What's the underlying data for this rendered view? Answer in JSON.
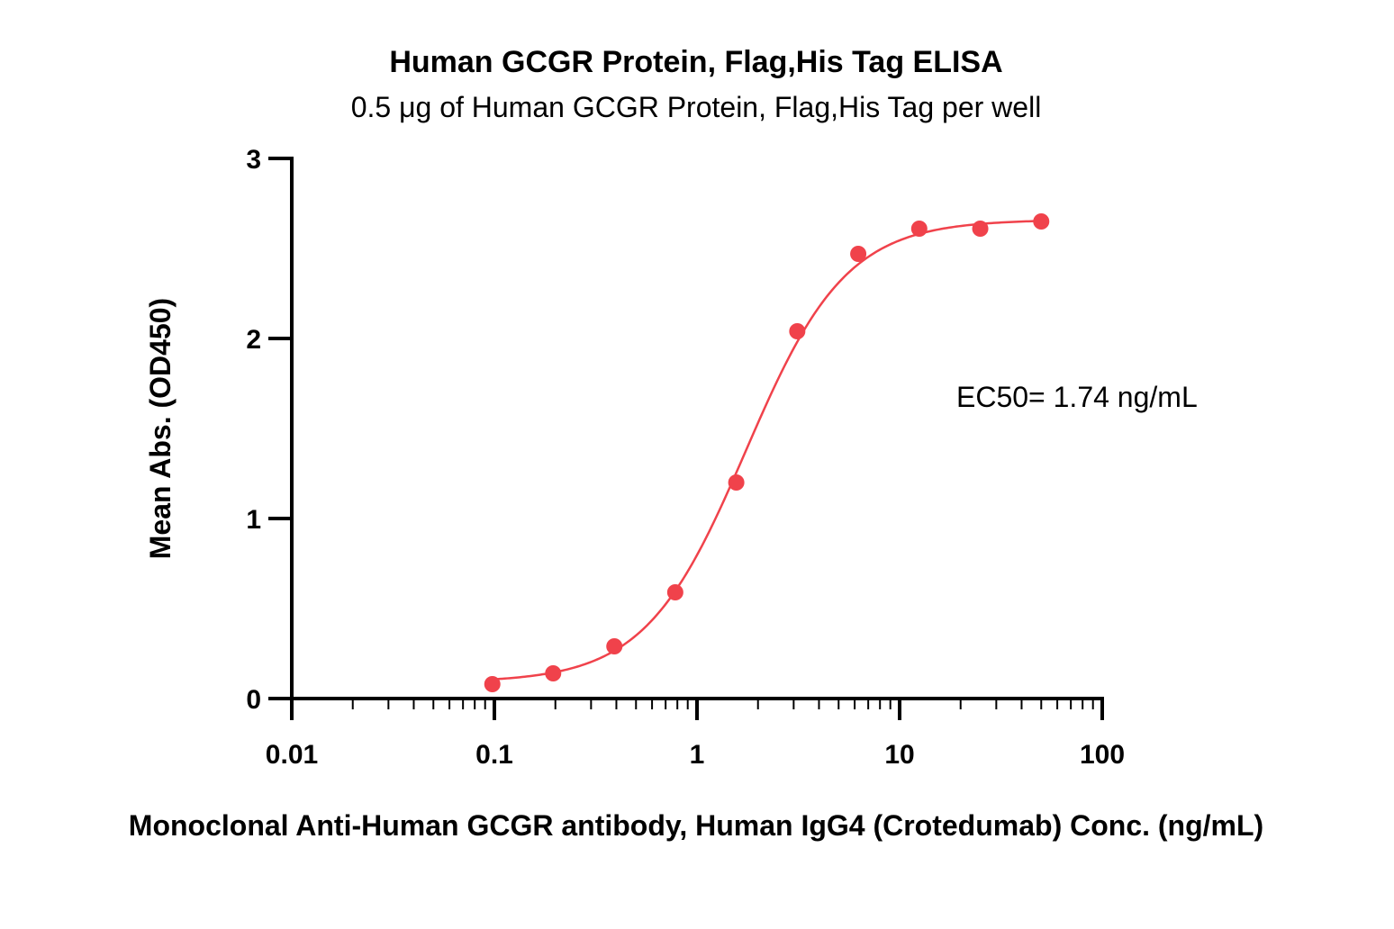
{
  "chart_data": {
    "type": "scatter",
    "title": "Human GCGR Protein, Flag,His Tag ELISA",
    "subtitle": "0.5 μg of Human GCGR Protein, Flag,His Tag per well",
    "xlabel": "Monoclonal Anti-Human GCGR antibody, Human IgG4 (Crotedumab) Conc. (ng/mL)",
    "ylabel": "Mean Abs. (OD450)",
    "x_scale": "log",
    "xlim": [
      0.01,
      100
    ],
    "ylim": [
      0,
      3
    ],
    "x_ticks": [
      0.01,
      0.1,
      1,
      10,
      100
    ],
    "x_tick_labels": [
      "0.01",
      "0.1",
      "1",
      "10",
      "100"
    ],
    "y_ticks": [
      0,
      1,
      2,
      3
    ],
    "y_tick_labels": [
      "0",
      "1",
      "2",
      "3"
    ],
    "grid": false,
    "annotation": "EC50= 1.74 ng/mL",
    "color": "#f0424b",
    "series": [
      {
        "x": [
          0.0977,
          0.195,
          0.391,
          0.781,
          1.5625,
          3.125,
          6.25,
          12.5,
          25,
          50
        ],
        "y": [
          0.08,
          0.14,
          0.29,
          0.59,
          1.2,
          2.04,
          2.47,
          2.61,
          2.61,
          2.65
        ]
      }
    ],
    "fit": {
      "model": "4PL",
      "bottom": 0.09,
      "top": 2.66,
      "ec50": 1.74,
      "hill": 1.75
    }
  }
}
